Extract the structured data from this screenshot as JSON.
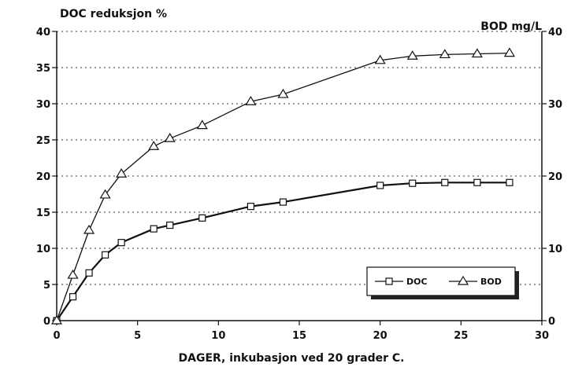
{
  "chart_data": {
    "type": "line",
    "title": "",
    "xlabel": "DAGER, inkubasjon ved 20 grader C.",
    "ylabel_left": "DOC reduksjon %",
    "ylabel_right": "BOD mg/L",
    "xlim": [
      0,
      30
    ],
    "ylim_left": [
      0,
      40
    ],
    "ylim_right": [
      0,
      40
    ],
    "x_ticks": [
      0,
      5,
      10,
      15,
      20,
      25,
      30
    ],
    "y_ticks_left": [
      0,
      5,
      10,
      15,
      20,
      25,
      30,
      35,
      40
    ],
    "y_ticks_right": [
      0,
      10,
      20,
      30,
      40
    ],
    "grid": "horizontal dotted",
    "legend_position": "bottom-right",
    "series": [
      {
        "name": "DOC",
        "marker": "square",
        "axis": "left",
        "x": [
          0,
          1,
          2,
          3,
          4,
          6,
          7,
          9,
          12,
          14,
          20,
          22,
          24,
          26,
          28
        ],
        "y": [
          0,
          3.3,
          6.6,
          9.1,
          10.8,
          12.7,
          13.2,
          14.2,
          15.8,
          16.4,
          18.7,
          19.0,
          19.1,
          19.1,
          19.1
        ]
      },
      {
        "name": "BOD",
        "marker": "triangle",
        "axis": "left",
        "x": [
          0,
          1,
          2,
          3,
          4,
          6,
          7,
          9,
          12,
          14,
          20,
          22,
          24,
          26,
          28
        ],
        "y": [
          0,
          6.3,
          12.5,
          17.4,
          20.3,
          24.1,
          25.2,
          27.0,
          30.3,
          31.3,
          36.0,
          36.6,
          36.8,
          36.9,
          37.0
        ]
      }
    ]
  }
}
